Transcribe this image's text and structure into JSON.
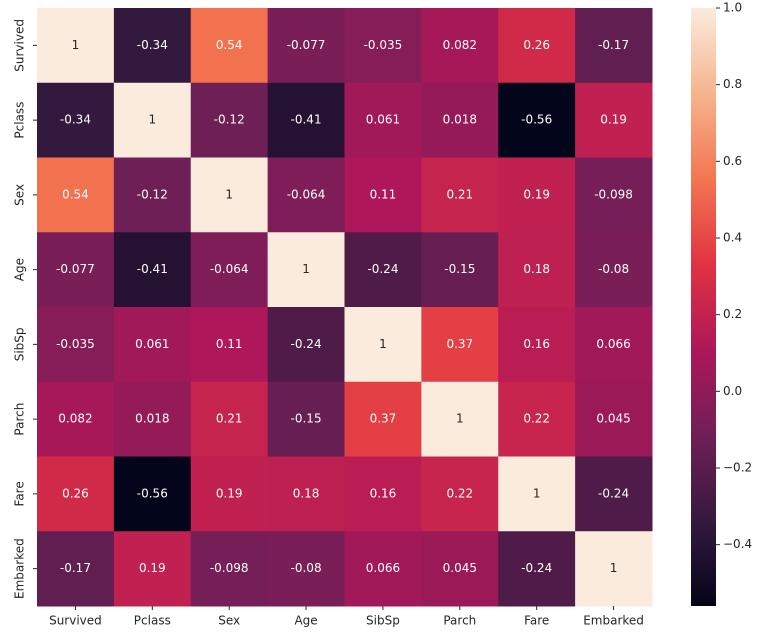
{
  "chart_data": {
    "type": "heatmap",
    "x": [
      "Survived",
      "Pclass",
      "Sex",
      "Age",
      "SibSp",
      "Parch",
      "Fare",
      "Embarked"
    ],
    "y": [
      "Survived",
      "Pclass",
      "Sex",
      "Age",
      "SibSp",
      "Parch",
      "Fare",
      "Embarked"
    ],
    "values": [
      [
        1,
        -0.34,
        0.54,
        -0.077,
        -0.035,
        0.082,
        0.26,
        -0.17
      ],
      [
        -0.34,
        1,
        -0.12,
        -0.41,
        0.061,
        0.018,
        -0.56,
        0.19
      ],
      [
        0.54,
        -0.12,
        1,
        -0.064,
        0.11,
        0.21,
        0.19,
        -0.098
      ],
      [
        -0.077,
        -0.41,
        -0.064,
        1,
        -0.24,
        -0.15,
        0.18,
        -0.08
      ],
      [
        -0.035,
        0.061,
        0.11,
        -0.24,
        1,
        0.37,
        0.16,
        0.066
      ],
      [
        0.082,
        0.018,
        0.21,
        -0.15,
        0.37,
        1,
        0.22,
        0.045
      ],
      [
        0.26,
        -0.56,
        0.19,
        0.18,
        0.16,
        0.22,
        1,
        -0.24
      ],
      [
        -0.17,
        0.19,
        -0.098,
        -0.08,
        0.066,
        0.045,
        -0.24,
        1
      ]
    ],
    "colorscale": [
      "#03051a",
      "#35193e",
      "#701f57",
      "#ae1759",
      "#e13342",
      "#f37651",
      "#f6b48e",
      "#faebdd"
    ],
    "zlim": [
      -0.56,
      1
    ],
    "zticks": [
      {
        "value": -0.4,
        "label": "−0.4"
      },
      {
        "value": -0.2,
        "label": "−0.2"
      },
      {
        "value": 0,
        "label": "0.0"
      },
      {
        "value": 0.2,
        "label": "0.2"
      },
      {
        "value": 0.4,
        "label": "0.4"
      },
      {
        "value": 0.6,
        "label": "0.6"
      },
      {
        "value": 0.8,
        "label": "0.8"
      },
      {
        "value": 1,
        "label": "1.0"
      }
    ]
  }
}
